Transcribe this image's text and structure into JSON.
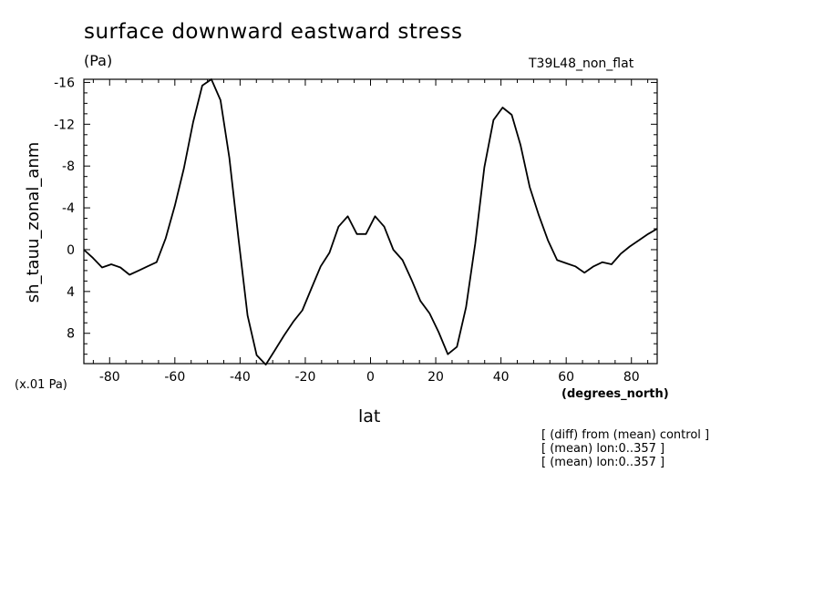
{
  "header": {
    "title": "surface downward eastward stress",
    "units": "(Pa)",
    "run_name": "T39L48_non_flat"
  },
  "footer": {
    "scale_factor": "(x.01 Pa)",
    "x_units": "(degrees_north)",
    "notes": [
      "[ (diff) from (mean) control ]",
      "[ (mean) lon:0..357 ]",
      "[ (mean) lon:0..357 ]"
    ]
  },
  "chart_data": {
    "type": "line",
    "title": "surface downward eastward stress",
    "xlabel": "lat",
    "ylabel": "sh_tauu_zonal_anm",
    "xlim": [
      -87.9,
      87.9
    ],
    "ylim": [
      10.9,
      -16.3
    ],
    "y_inverted": true,
    "x_ticks": [
      -80,
      -60,
      -40,
      -20,
      0,
      20,
      40,
      60,
      80
    ],
    "x_tick_labels": [
      "-80",
      "-60",
      "-40",
      "-20",
      "0",
      "20",
      "40",
      "60",
      "80"
    ],
    "y_ticks": [
      -16,
      -12,
      -8,
      -4,
      0,
      4,
      8
    ],
    "y_tick_labels": [
      "-16",
      "-12",
      "-8",
      "-4",
      "0",
      "4",
      "8"
    ],
    "grid": false,
    "color": "#000000",
    "series": [
      {
        "x": [
          -87.9,
          -85.1,
          -82.3,
          -79.5,
          -76.7,
          -73.9,
          -71.1,
          -68.4,
          -65.6,
          -62.8,
          -60.0,
          -57.2,
          -54.4,
          -51.6,
          -48.8,
          -46.0,
          -43.3,
          -40.5,
          -37.7,
          -34.9,
          -32.1,
          -29.3,
          -26.5,
          -23.7,
          -20.9,
          -18.1,
          -15.3,
          -12.6,
          -9.8,
          -7.0,
          -4.2,
          -1.4,
          1.4,
          4.2,
          7.0,
          9.8,
          12.6,
          15.3,
          18.1,
          20.9,
          23.7,
          26.5,
          29.3,
          32.1,
          34.9,
          37.7,
          40.5,
          43.3,
          46.0,
          48.8,
          51.6,
          54.4,
          57.2,
          60.0,
          62.8,
          65.6,
          68.4,
          71.1,
          73.9,
          76.7,
          79.5,
          82.3,
          85.1,
          87.9
        ],
        "y": [
          0.0,
          0.8,
          1.7,
          1.4,
          1.7,
          2.4,
          2.0,
          1.6,
          1.2,
          -1.1,
          -4.2,
          -7.8,
          -12.2,
          -15.7,
          -16.3,
          -14.3,
          -8.8,
          -1.1,
          6.3,
          10.1,
          11.0,
          9.6,
          8.2,
          6.9,
          5.8,
          3.7,
          1.6,
          0.3,
          -2.2,
          -3.2,
          -1.5,
          -1.5,
          -3.2,
          -2.2,
          0.0,
          1.0,
          2.9,
          4.9,
          6.1,
          7.9,
          10.0,
          9.3,
          5.5,
          -0.6,
          -7.9,
          -12.4,
          -13.6,
          -12.9,
          -10.0,
          -6.0,
          -3.3,
          -0.9,
          1.0,
          1.3,
          1.6,
          2.2,
          1.6,
          1.2,
          1.4,
          0.4,
          -0.3,
          -0.9,
          -1.5,
          -2.0
        ]
      }
    ]
  }
}
